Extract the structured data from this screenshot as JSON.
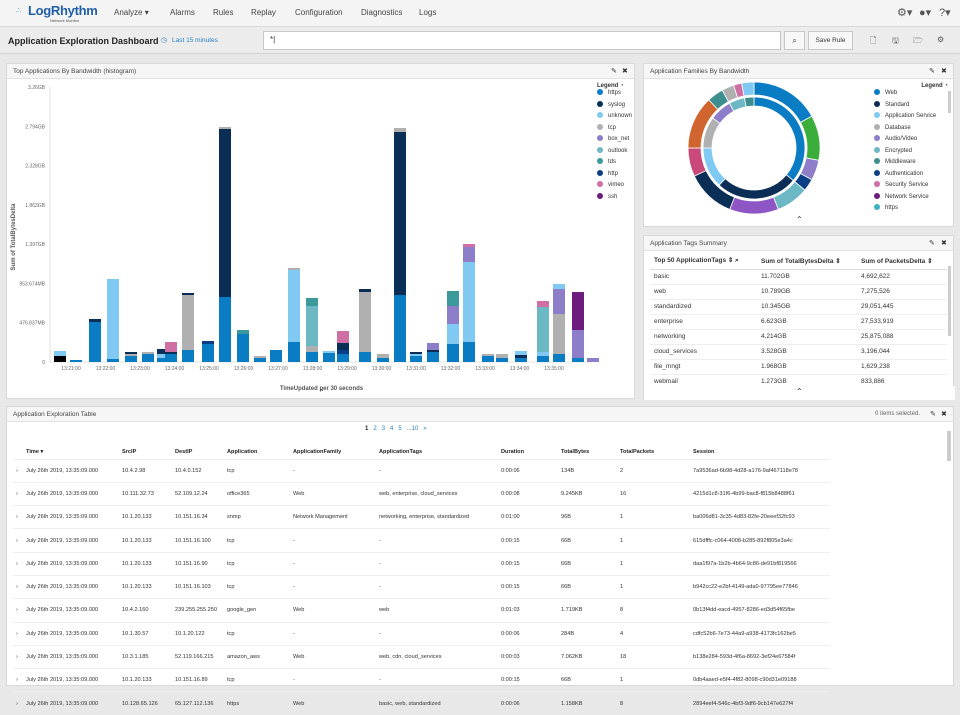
{
  "nav": {
    "logo": "LogRhythm",
    "logo_sub": "Network Monitor",
    "tabs": [
      "Analyze",
      "Alarms",
      "Rules",
      "Replay",
      "Configuration",
      "Diagnostics",
      "Logs"
    ]
  },
  "toolbar": {
    "title": "Application Exploration Dashboard",
    "time_range": "Last 15 minutes",
    "search_value": "*|",
    "save_rule": "Save Rule"
  },
  "histogram": {
    "title": "Top Applications By Bandwidth (histogram)",
    "legend_title": "Legend",
    "legend": [
      {
        "name": "https",
        "color": "#0a7cc4"
      },
      {
        "name": "syslog",
        "color": "#0b2e57"
      },
      {
        "name": "unknown",
        "color": "#7fc9f2"
      },
      {
        "name": "tcp",
        "color": "#b0b0b0"
      },
      {
        "name": "box_net",
        "color": "#8e7dc9"
      },
      {
        "name": "outlook",
        "color": "#6cb8c5"
      },
      {
        "name": "tds",
        "color": "#3d9a9a"
      },
      {
        "name": "http",
        "color": "#0a3f86"
      },
      {
        "name": "vimeo",
        "color": "#cf6fa4"
      },
      {
        "name": "ssh",
        "color": "#6d1c7e"
      }
    ],
    "ylabel": "Sum of TotalBytesDelta",
    "yticks": [
      "3.26GB",
      "2.794GB",
      "2.328GB",
      "1.863GB",
      "1.397GB",
      "953.674MB",
      "476.837MB",
      "0"
    ],
    "xlabel": "TimeUpdated per 30 seconds",
    "xticks": [
      "13:21:00",
      "13:22:00",
      "13:23:00",
      "13:24:00",
      "13:25:00",
      "13:26:00",
      "13:27:00",
      "13:28:00",
      "13:29:00",
      "13:30:00",
      "13:31:00",
      "13:32:00",
      "13:33:00",
      "13:34:00",
      "13:35:00"
    ]
  },
  "families": {
    "title": "Application Families By Bandwidth",
    "legend_title": "Legend",
    "legend": [
      {
        "name": "Web",
        "color": "#0a7cc4"
      },
      {
        "name": "Standard",
        "color": "#0b2e57"
      },
      {
        "name": "Application Service",
        "color": "#7fc9f2"
      },
      {
        "name": "Database",
        "color": "#b0b0b0"
      },
      {
        "name": "Audio/Video",
        "color": "#8e7dc9"
      },
      {
        "name": "Encrypted",
        "color": "#6cb8c5"
      },
      {
        "name": "Middleware",
        "color": "#3d8f8f"
      },
      {
        "name": "Authentication",
        "color": "#0a3f86"
      },
      {
        "name": "Security Service",
        "color": "#cf6fa4"
      },
      {
        "name": "Network Service",
        "color": "#6d1c7e"
      },
      {
        "name": "https",
        "color": "#3bb3c3"
      }
    ]
  },
  "tags_summary": {
    "title": "Application Tags Summary",
    "headers": [
      "Top 50 ApplicationTags",
      "Sum of TotalBytesDelta",
      "Sum of PacketsDelta"
    ],
    "rows": [
      [
        "basic",
        "11.702GB",
        "4,692,622"
      ],
      [
        "web",
        "10.789GB",
        "7,275,526"
      ],
      [
        "standardized",
        "10.345GB",
        "29,051,445"
      ],
      [
        "enterprise",
        "6.623GB",
        "27,533,919"
      ],
      [
        "networking",
        "4.214GB",
        "25,875,088"
      ],
      [
        "cloud_services",
        "3.528GB",
        "3,196,044"
      ],
      [
        "file_mngt",
        "1.968GB",
        "1,629,238"
      ],
      [
        "webmail",
        "1.273GB",
        "833,886"
      ]
    ]
  },
  "exploration": {
    "title": "Application Exploration Table",
    "selected": "0 items selected.",
    "pages": [
      "1",
      "2",
      "3",
      "4",
      "5",
      "...10",
      "»"
    ],
    "headers": [
      "Time",
      "SrcIP",
      "DestIP",
      "Application",
      "ApplicationFamily",
      "ApplicationTags",
      "Duration",
      "TotalBytes",
      "TotalPackets",
      "Session"
    ],
    "rows": [
      [
        "July 26th 2019, 13:35:09.000",
        "10.4.2.98",
        "10.4.0.152",
        "tcp",
        "-",
        "-",
        "0:00:06",
        "134B",
        "2",
        "7a9536ad-6b98-4d28-a176-9af467118e78"
      ],
      [
        "July 26th 2019, 13:35:09.000",
        "10.111.32.73",
        "52.109.12.24",
        "office365",
        "Web",
        "web, enterprise, cloud_services",
        "0:00:08",
        "9.245KB",
        "16",
        "4215d1c8-31f6-4b99-bac8-f815b8488f61"
      ],
      [
        "July 26th 2019, 13:35:09.000",
        "10.1.20.133",
        "10.151.16.34",
        "snmp",
        "Network Management",
        "networking, enterprise, standardized",
        "0:01:00",
        "96B",
        "1",
        "ba006d81-3c35-4d83-82fe-20eeef32fc93"
      ],
      [
        "July 26th 2019, 13:35:09.000",
        "10.1.20.133",
        "10.151.16.100",
        "tcp",
        "-",
        "-",
        "0:00:15",
        "66B",
        "1",
        "615dfffc-c064-4008-b285-892f805e3a4c"
      ],
      [
        "July 26th 2019, 13:35:09.000",
        "10.1.20.133",
        "10.151.16.90",
        "tcp",
        "-",
        "-",
        "0:00:15",
        "66B",
        "1",
        "daa1f97a-1b2b-4b64-9c86-de91bf819566"
      ],
      [
        "July 26th 2019, 13:35:09.000",
        "10.1.20.133",
        "10.151.16.103",
        "tcp",
        "-",
        "-",
        "0:00:15",
        "66B",
        "1",
        "b942cc22-e2bf-4149-ada0-97795ee77846"
      ],
      [
        "July 26th 2019, 13:35:09.000",
        "10.4.2.160",
        "239.255.255.250",
        "google_gen",
        "Web",
        "web",
        "0:01:03",
        "1.719KB",
        "8",
        "0b13f4dd-eacd-4957-8286-ed3d54f65fbe"
      ],
      [
        "July 26th 2019, 13:35:09.000",
        "10.1.30.57",
        "10.1.20.122",
        "tcp",
        "-",
        "-",
        "0:00:06",
        "284B",
        "4",
        "cdfc52b6-7e73-44a9-a938-4173fc162be5"
      ],
      [
        "July 26th 2019, 13:35:09.000",
        "10.3.1.185",
        "52.119.166.215",
        "amazon_aws",
        "Web",
        "web, cdn, cloud_services",
        "0:00:03",
        "7.062KB",
        "18",
        "b138e284-593d-4f6a-8692-3ef24e67584f"
      ],
      [
        "July 26th 2019, 13:35:09.000",
        "10.1.20.133",
        "10.151.16.89",
        "tcp",
        "-",
        "-",
        "0:00:15",
        "66B",
        "1",
        "0db4aaed-e5f4-4f82-8098-c90d31e09188"
      ],
      [
        "July 26th 2019, 13:35:09.000",
        "10.128.65.126",
        "65.127.112.136",
        "https",
        "Web",
        "basic, web, standardized",
        "0:00:06",
        "1.158KB",
        "8",
        "2894eef4-546c-4bf3-9df6-9cb147e627f4"
      ]
    ]
  }
}
